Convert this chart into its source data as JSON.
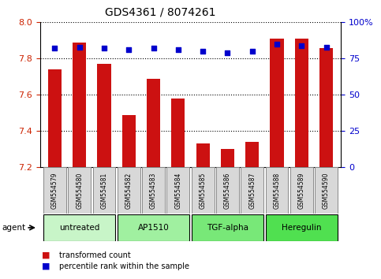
{
  "title": "GDS4361 / 8074261",
  "samples": [
    "GSM554579",
    "GSM554580",
    "GSM554581",
    "GSM554582",
    "GSM554583",
    "GSM554584",
    "GSM554585",
    "GSM554586",
    "GSM554587",
    "GSM554588",
    "GSM554589",
    "GSM554590"
  ],
  "red_values": [
    7.74,
    7.89,
    7.77,
    7.49,
    7.69,
    7.58,
    7.33,
    7.3,
    7.34,
    7.91,
    7.91,
    7.86
  ],
  "blue_values": [
    82,
    83,
    82,
    81,
    82,
    81,
    80,
    79,
    80,
    85,
    84,
    83
  ],
  "ylim_left": [
    7.2,
    8.0
  ],
  "ylim_right": [
    0,
    100
  ],
  "yticks_left": [
    7.2,
    7.4,
    7.6,
    7.8,
    8.0
  ],
  "yticks_right": [
    0,
    25,
    50,
    75,
    100
  ],
  "ytick_labels_right": [
    "0",
    "25",
    "50",
    "75",
    "100%"
  ],
  "dotted_lines": [
    7.4,
    7.6,
    7.8,
    8.0
  ],
  "agent_groups": [
    {
      "label": "untreated",
      "start": 0,
      "end": 3,
      "color": "#c8f5c8"
    },
    {
      "label": "AP1510",
      "start": 3,
      "end": 6,
      "color": "#a0f0a0"
    },
    {
      "label": "TGF-alpha",
      "start": 6,
      "end": 9,
      "color": "#78e878"
    },
    {
      "label": "Heregulin",
      "start": 9,
      "end": 12,
      "color": "#50e050"
    }
  ],
  "bar_color": "#cc1111",
  "dot_color": "#0000cc",
  "bar_width": 0.55,
  "background_color": "#ffffff",
  "left_tick_color": "#cc2200",
  "right_tick_color": "#0000cc",
  "sample_box_color": "#d8d8d8",
  "sample_box_edge": "#888888"
}
